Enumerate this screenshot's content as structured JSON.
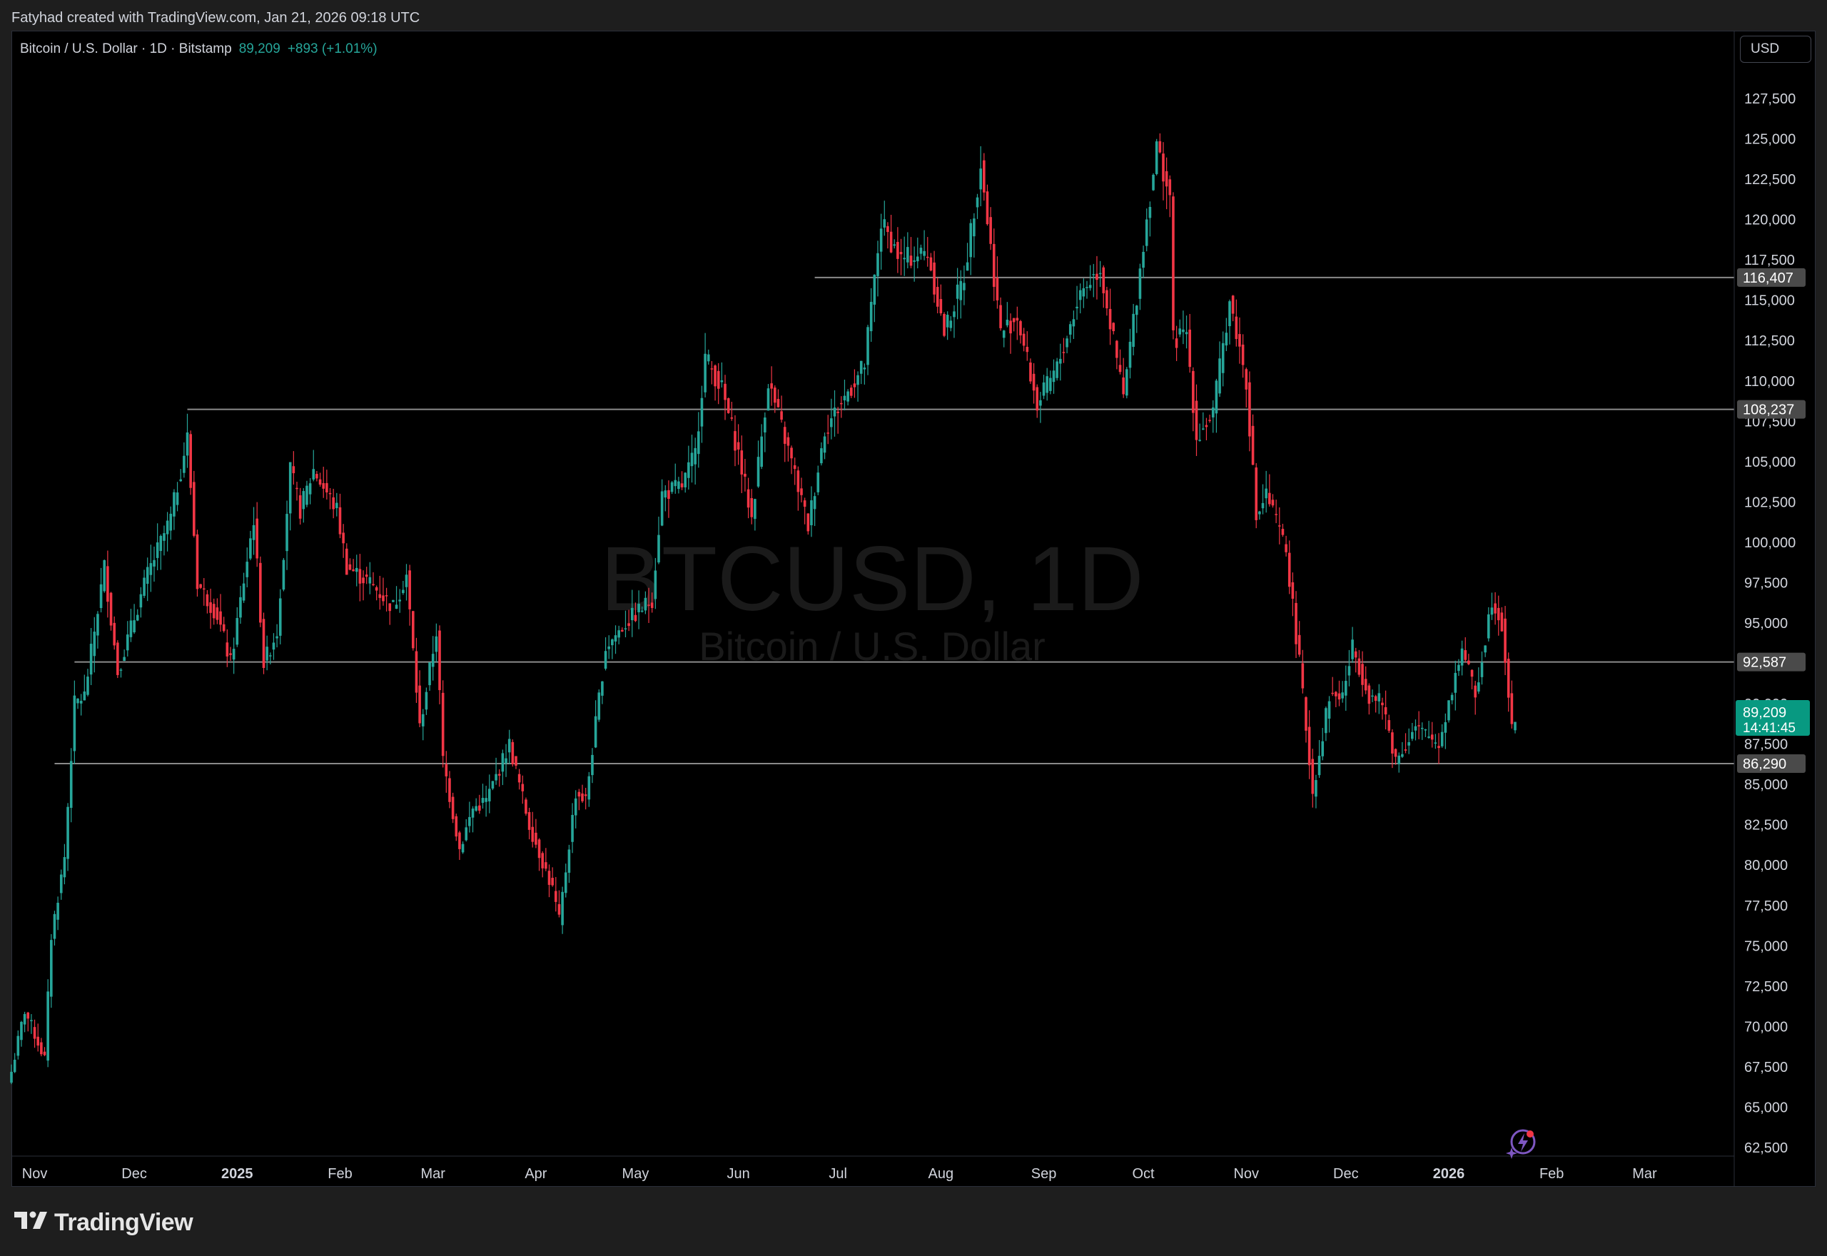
{
  "attribution": "Fatyhad created with TradingView.com, Jan 21, 2026 09:18 UTC",
  "legend": {
    "symbol": "Bitcoin / U.S. Dollar · 1D · Bitstamp",
    "last": "89,209",
    "change": "+893 (+1.01%)"
  },
  "currency_button": "USD",
  "watermark": {
    "ticker": "BTCUSD, 1D",
    "name": "Bitcoin / U.S. Dollar"
  },
  "brand": {
    "name": "TradingView"
  },
  "colors": {
    "up": "#26a69a",
    "down": "#f23645",
    "background": "#000000",
    "hline": "#8a8a8a",
    "axis_text": "#d1d4dc",
    "price_tag": "#089981"
  },
  "icons": {
    "logo": "tradingview-logo-icon",
    "badge": "lightning-badge-icon"
  },
  "chart_data": {
    "type": "candlestick",
    "title": "Bitcoin / U.S. Dollar · 1D · Bitstamp",
    "ylim": [
      62500,
      127500
    ],
    "y_ticks": [
      "62,500",
      "65,000",
      "67,500",
      "70,000",
      "72,500",
      "75,000",
      "77,500",
      "80,000",
      "82,500",
      "85,000",
      "87,500",
      "90,000",
      "92,500",
      "95,000",
      "97,500",
      "100,000",
      "102,500",
      "105,000",
      "107,500",
      "110,000",
      "112,500",
      "115,000",
      "117,500",
      "120,000",
      "122,500",
      "125,000",
      "127,500"
    ],
    "x_ticks": [
      {
        "label": "Nov",
        "date": "2024-11-01",
        "bold": false
      },
      {
        "label": "Dec",
        "date": "2024-12-01",
        "bold": false
      },
      {
        "label": "2025",
        "date": "2025-01-01",
        "bold": true
      },
      {
        "label": "Feb",
        "date": "2025-02-01",
        "bold": false
      },
      {
        "label": "Mar",
        "date": "2025-03-01",
        "bold": false
      },
      {
        "label": "Apr",
        "date": "2025-04-01",
        "bold": false
      },
      {
        "label": "May",
        "date": "2025-05-01",
        "bold": false
      },
      {
        "label": "Jun",
        "date": "2025-06-01",
        "bold": false
      },
      {
        "label": "Jul",
        "date": "2025-07-01",
        "bold": false
      },
      {
        "label": "Aug",
        "date": "2025-08-01",
        "bold": false
      },
      {
        "label": "Sep",
        "date": "2025-09-01",
        "bold": false
      },
      {
        "label": "Oct",
        "date": "2025-10-01",
        "bold": false
      },
      {
        "label": "Nov",
        "date": "2025-11-01",
        "bold": false
      },
      {
        "label": "Dec",
        "date": "2025-12-01",
        "bold": false
      },
      {
        "label": "2026",
        "date": "2026-01-01",
        "bold": true
      },
      {
        "label": "Feb",
        "date": "2026-02-01",
        "bold": false
      },
      {
        "label": "Mar",
        "date": "2026-03-01",
        "bold": false
      }
    ],
    "x_start": "2024-10-25",
    "x_end": "2026-03-28",
    "horizontal_lines": [
      {
        "price": 116407,
        "label": "116,407",
        "from": "2025-06-24"
      },
      {
        "price": 108237,
        "label": "108,237",
        "from": "2024-12-17"
      },
      {
        "price": 92587,
        "label": "92,587",
        "from": "2024-11-13"
      },
      {
        "price": 86290,
        "label": "86,290",
        "from": "2024-11-07"
      }
    ],
    "last_price": {
      "price": 89209,
      "label": "89,209",
      "countdown": "14:41:45"
    },
    "close_path": [
      [
        "2024-10-25",
        67200
      ],
      [
        "2024-10-29",
        71000
      ],
      [
        "2024-11-01",
        69500
      ],
      [
        "2024-11-04",
        68000
      ],
      [
        "2024-11-06",
        75600
      ],
      [
        "2024-11-10",
        80500
      ],
      [
        "2024-11-13",
        90000
      ],
      [
        "2024-11-16",
        90500
      ],
      [
        "2024-11-22",
        98500
      ],
      [
        "2024-11-26",
        92000
      ],
      [
        "2024-12-02",
        96000
      ],
      [
        "2024-12-05",
        98000
      ],
      [
        "2024-12-08",
        99500
      ],
      [
        "2024-12-12",
        101500
      ],
      [
        "2024-12-17",
        106500
      ],
      [
        "2024-12-20",
        97500
      ],
      [
        "2024-12-26",
        95500
      ],
      [
        "2024-12-30",
        92500
      ],
      [
        "2025-01-06",
        101500
      ],
      [
        "2025-01-09",
        92500
      ],
      [
        "2025-01-13",
        94500
      ],
      [
        "2025-01-17",
        104500
      ],
      [
        "2025-01-20",
        102000
      ],
      [
        "2025-01-24",
        104500
      ],
      [
        "2025-01-31",
        102000
      ],
      [
        "2025-02-03",
        98500
      ],
      [
        "2025-02-10",
        97500
      ],
      [
        "2025-02-17",
        96000
      ],
      [
        "2025-02-21",
        98000
      ],
      [
        "2025-02-25",
        88500
      ],
      [
        "2025-03-02",
        94500
      ],
      [
        "2025-03-04",
        86500
      ],
      [
        "2025-03-09",
        81000
      ],
      [
        "2025-03-13",
        83500
      ],
      [
        "2025-03-17",
        84000
      ],
      [
        "2025-03-24",
        87500
      ],
      [
        "2025-03-30",
        82500
      ],
      [
        "2025-04-06",
        78500
      ],
      [
        "2025-04-08",
        76500
      ],
      [
        "2025-04-13",
        84500
      ],
      [
        "2025-04-16",
        84000
      ],
      [
        "2025-04-22",
        93500
      ],
      [
        "2025-04-28",
        95000
      ],
      [
        "2025-05-06",
        96500
      ],
      [
        "2025-05-09",
        103000
      ],
      [
        "2025-05-15",
        103500
      ],
      [
        "2025-05-19",
        105500
      ],
      [
        "2025-05-22",
        111500
      ],
      [
        "2025-05-27",
        109500
      ],
      [
        "2025-06-01",
        105500
      ],
      [
        "2025-06-05",
        101500
      ],
      [
        "2025-06-10",
        110000
      ],
      [
        "2025-06-17",
        105000
      ],
      [
        "2025-06-22",
        101000
      ],
      [
        "2025-06-27",
        107000
      ],
      [
        "2025-07-03",
        109000
      ],
      [
        "2025-07-09",
        111000
      ],
      [
        "2025-07-14",
        119800
      ],
      [
        "2025-07-20",
        117500
      ],
      [
        "2025-07-28",
        118000
      ],
      [
        "2025-08-02",
        113000
      ],
      [
        "2025-08-08",
        116500
      ],
      [
        "2025-08-13",
        123500
      ],
      [
        "2025-08-19",
        113000
      ],
      [
        "2025-08-24",
        114000
      ],
      [
        "2025-08-30",
        108500
      ],
      [
        "2025-09-05",
        110800
      ],
      [
        "2025-09-12",
        115500
      ],
      [
        "2025-09-18",
        117000
      ],
      [
        "2025-09-25",
        109000
      ],
      [
        "2025-10-01",
        118500
      ],
      [
        "2025-10-05",
        124500
      ],
      [
        "2025-10-09",
        121500
      ],
      [
        "2025-10-10",
        112500
      ],
      [
        "2025-10-14",
        113000
      ],
      [
        "2025-10-17",
        106500
      ],
      [
        "2025-10-22",
        108000
      ],
      [
        "2025-10-27",
        115000
      ],
      [
        "2025-11-01",
        110000
      ],
      [
        "2025-11-04",
        101500
      ],
      [
        "2025-11-07",
        103000
      ],
      [
        "2025-11-13",
        99500
      ],
      [
        "2025-11-17",
        92500
      ],
      [
        "2025-11-21",
        84500
      ],
      [
        "2025-11-26",
        90500
      ],
      [
        "2025-11-30",
        90500
      ],
      [
        "2025-12-03",
        93500
      ],
      [
        "2025-12-08",
        90500
      ],
      [
        "2025-12-12",
        90000
      ],
      [
        "2025-12-16",
        86500
      ],
      [
        "2025-12-22",
        88500
      ],
      [
        "2025-12-29",
        87500
      ],
      [
        "2026-01-05",
        93500
      ],
      [
        "2026-01-09",
        90500
      ],
      [
        "2026-01-14",
        96500
      ],
      [
        "2026-01-17",
        95000
      ],
      [
        "2026-01-20",
        88300
      ],
      [
        "2026-01-21",
        89209
      ]
    ]
  }
}
